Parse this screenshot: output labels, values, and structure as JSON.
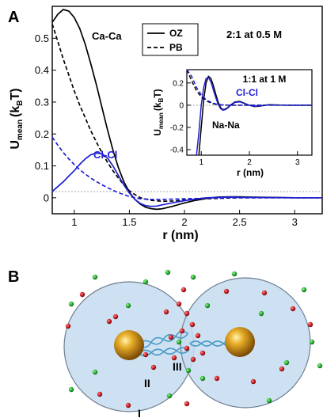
{
  "panel_a": {
    "label": "A",
    "xlabel": "r (nm)",
    "ylabel_main": "U",
    "ylabel_sub": "mean",
    "ylabel_unit": "(k",
    "ylabel_unit_sub": "B",
    "ylabel_unit_end": "T)",
    "condition": "2:1 at 0.5 M",
    "label_caca": "Ca-Ca",
    "label_clcl": "Cl-Cl",
    "legend": [
      {
        "name": "OZ",
        "style": "solid"
      },
      {
        "name": "PB",
        "style": "dashed"
      }
    ]
  },
  "inset": {
    "condition": "1:1 at 1 M",
    "label_clcl": "Cl-Cl",
    "label_nana": "Na-Na",
    "xlabel": "r (nm)",
    "ylabel_main": "U",
    "ylabel_sub": "mean",
    "ylabel_unit": "(k",
    "ylabel_unit_sub": "B",
    "ylabel_unit_end": "T)"
  },
  "panel_b": {
    "label": "B",
    "roman_1": "I",
    "roman_2": "II",
    "roman_3": "III"
  },
  "colors": {
    "black": "#000000",
    "blue": "#1f1fd6",
    "sphere_fill": "#c6dcf0",
    "sphere_stroke": "#6f7f8f",
    "red_ion": "#c0141c",
    "green_ion": "#1faa2e",
    "gold": "#d6961a"
  },
  "chart_data": [
    {
      "type": "line",
      "xlim": [
        0.8,
        3.25
      ],
      "ylim": [
        -0.05,
        0.6
      ],
      "x_ticks": [
        "1",
        "1.5",
        "2",
        "2.5",
        "3"
      ],
      "y_ticks": [
        "0",
        "0.1",
        "0.2",
        "0.3",
        "0.4",
        "0.5"
      ],
      "series": [
        {
          "name": "Ca-Ca OZ",
          "color": "black",
          "style": "solid",
          "points": [
            [
              0.8,
              0.55
            ],
            [
              0.85,
              0.575
            ],
            [
              0.9,
              0.59
            ],
            [
              0.95,
              0.585
            ],
            [
              1.0,
              0.565
            ],
            [
              1.05,
              0.53
            ],
            [
              1.1,
              0.48
            ],
            [
              1.15,
              0.42
            ],
            [
              1.2,
              0.355
            ],
            [
              1.25,
              0.285
            ],
            [
              1.3,
              0.215
            ],
            [
              1.35,
              0.15
            ],
            [
              1.4,
              0.095
            ],
            [
              1.45,
              0.05
            ],
            [
              1.5,
              0.018
            ],
            [
              1.55,
              -0.005
            ],
            [
              1.6,
              -0.02
            ],
            [
              1.65,
              -0.03
            ],
            [
              1.7,
              -0.034
            ],
            [
              1.75,
              -0.036
            ],
            [
              1.8,
              -0.034
            ],
            [
              1.9,
              -0.026
            ],
            [
              2.0,
              -0.016
            ],
            [
              2.1,
              -0.008
            ],
            [
              2.2,
              -0.002
            ],
            [
              2.3,
              0.002
            ],
            [
              2.4,
              0.003
            ],
            [
              2.5,
              0.003
            ],
            [
              2.6,
              0.002
            ],
            [
              2.8,
              0.001
            ],
            [
              3.0,
              0.0
            ],
            [
              3.25,
              0.0
            ]
          ]
        },
        {
          "name": "Ca-Ca PB",
          "color": "black",
          "style": "dashed",
          "points": [
            [
              0.8,
              0.545
            ],
            [
              0.85,
              0.49
            ],
            [
              0.9,
              0.435
            ],
            [
              0.95,
              0.385
            ],
            [
              1.0,
              0.335
            ],
            [
              1.05,
              0.29
            ],
            [
              1.1,
              0.25
            ],
            [
              1.15,
              0.21
            ],
            [
              1.2,
              0.175
            ],
            [
              1.25,
              0.142
            ],
            [
              1.3,
              0.112
            ],
            [
              1.35,
              0.085
            ],
            [
              1.4,
              0.062
            ],
            [
              1.45,
              0.04
            ],
            [
              1.5,
              0.022
            ],
            [
              1.55,
              0.01
            ],
            [
              1.6,
              0.0
            ],
            [
              1.7,
              -0.008
            ],
            [
              1.8,
              -0.011
            ],
            [
              1.9,
              -0.01
            ],
            [
              2.0,
              -0.007
            ],
            [
              2.2,
              -0.003
            ],
            [
              2.5,
              0.0
            ],
            [
              3.0,
              0.0
            ],
            [
              3.25,
              0.0
            ]
          ]
        },
        {
          "name": "Cl-Cl OZ",
          "color": "blue",
          "style": "solid",
          "points": [
            [
              0.8,
              0.02
            ],
            [
              0.85,
              0.035
            ],
            [
              0.9,
              0.05
            ],
            [
              0.95,
              0.068
            ],
            [
              1.0,
              0.085
            ],
            [
              1.05,
              0.105
            ],
            [
              1.1,
              0.122
            ],
            [
              1.15,
              0.135
            ],
            [
              1.2,
              0.14
            ],
            [
              1.25,
              0.138
            ],
            [
              1.3,
              0.125
            ],
            [
              1.35,
              0.1
            ],
            [
              1.4,
              0.07
            ],
            [
              1.45,
              0.04
            ],
            [
              1.5,
              0.015
            ],
            [
              1.55,
              -0.005
            ],
            [
              1.6,
              -0.018
            ],
            [
              1.65,
              -0.025
            ],
            [
              1.7,
              -0.027
            ],
            [
              1.75,
              -0.026
            ],
            [
              1.8,
              -0.022
            ],
            [
              1.9,
              -0.015
            ],
            [
              2.0,
              -0.009
            ],
            [
              2.1,
              -0.004
            ],
            [
              2.2,
              0.0
            ],
            [
              2.4,
              0.002
            ],
            [
              2.6,
              0.001
            ],
            [
              3.0,
              0.0
            ],
            [
              3.25,
              0.0
            ]
          ]
        },
        {
          "name": "Cl-Cl PB",
          "color": "blue",
          "style": "dashed",
          "points": [
            [
              0.8,
              0.19
            ],
            [
              0.85,
              0.165
            ],
            [
              0.9,
              0.142
            ],
            [
              0.95,
              0.122
            ],
            [
              1.0,
              0.104
            ],
            [
              1.05,
              0.088
            ],
            [
              1.1,
              0.074
            ],
            [
              1.15,
              0.062
            ],
            [
              1.2,
              0.051
            ],
            [
              1.25,
              0.041
            ],
            [
              1.3,
              0.032
            ],
            [
              1.35,
              0.024
            ],
            [
              1.4,
              0.016
            ],
            [
              1.45,
              0.01
            ],
            [
              1.5,
              0.004
            ],
            [
              1.55,
              0.0
            ],
            [
              1.6,
              -0.003
            ],
            [
              1.7,
              -0.005
            ],
            [
              1.8,
              -0.005
            ],
            [
              1.9,
              -0.004
            ],
            [
              2.0,
              -0.003
            ],
            [
              2.3,
              -0.001
            ],
            [
              2.6,
              0.0
            ],
            [
              3.25,
              0.0
            ]
          ]
        }
      ]
    },
    {
      "type": "line",
      "xlim": [
        0.7,
        3.3
      ],
      "ylim": [
        -0.45,
        0.32
      ],
      "x_ticks": [
        "1",
        "2",
        "3"
      ],
      "y_ticks": [
        "-0.4",
        "-0.2",
        "0",
        "0.2"
      ],
      "series": [
        {
          "name": "Na-Na OZ",
          "color": "black",
          "style": "solid",
          "points": [
            [
              0.95,
              -0.45
            ],
            [
              1.0,
              -0.2
            ],
            [
              1.05,
              0.05
            ],
            [
              1.1,
              0.2
            ],
            [
              1.15,
              0.26
            ],
            [
              1.2,
              0.24
            ],
            [
              1.25,
              0.18
            ],
            [
              1.3,
              0.1
            ],
            [
              1.35,
              0.03
            ],
            [
              1.4,
              -0.02
            ],
            [
              1.45,
              -0.04
            ],
            [
              1.5,
              -0.035
            ],
            [
              1.55,
              -0.02
            ],
            [
              1.6,
              0.0
            ],
            [
              1.7,
              0.03
            ],
            [
              1.8,
              0.035
            ],
            [
              1.9,
              0.018
            ],
            [
              2.0,
              0.0
            ],
            [
              2.1,
              -0.012
            ],
            [
              2.2,
              -0.01
            ],
            [
              2.3,
              -0.002
            ],
            [
              2.4,
              0.004
            ],
            [
              2.6,
              0.002
            ],
            [
              2.8,
              0.0
            ],
            [
              3.3,
              0.0
            ]
          ]
        },
        {
          "name": "Cl-Cl OZ",
          "color": "blue",
          "style": "solid",
          "points": [
            [
              0.9,
              -0.45
            ],
            [
              0.95,
              -0.25
            ],
            [
              1.0,
              0.0
            ],
            [
              1.05,
              0.16
            ],
            [
              1.1,
              0.24
            ],
            [
              1.15,
              0.25
            ],
            [
              1.2,
              0.21
            ],
            [
              1.25,
              0.14
            ],
            [
              1.3,
              0.07
            ],
            [
              1.35,
              0.01
            ],
            [
              1.4,
              -0.03
            ],
            [
              1.45,
              -0.045
            ],
            [
              1.5,
              -0.04
            ],
            [
              1.55,
              -0.025
            ],
            [
              1.6,
              -0.005
            ],
            [
              1.7,
              0.025
            ],
            [
              1.8,
              0.03
            ],
            [
              1.9,
              0.015
            ],
            [
              2.0,
              0.0
            ],
            [
              2.1,
              -0.01
            ],
            [
              2.2,
              -0.008
            ],
            [
              2.3,
              -0.001
            ],
            [
              2.4,
              0.003
            ],
            [
              2.6,
              0.001
            ],
            [
              3.3,
              0.0
            ]
          ]
        },
        {
          "name": "Na-Na PB",
          "color": "black",
          "style": "dashed",
          "points": [
            [
              0.7,
              0.35
            ],
            [
              0.8,
              0.22
            ],
            [
              0.9,
              0.13
            ],
            [
              1.0,
              0.075
            ],
            [
              1.1,
              0.04
            ],
            [
              1.2,
              0.02
            ],
            [
              1.3,
              0.008
            ],
            [
              1.4,
              0.002
            ],
            [
              1.6,
              0.0
            ],
            [
              3.3,
              0.0
            ]
          ]
        },
        {
          "name": "Cl-Cl PB",
          "color": "blue",
          "style": "dashed",
          "points": [
            [
              0.7,
              0.4
            ],
            [
              0.8,
              0.26
            ],
            [
              0.9,
              0.16
            ],
            [
              1.0,
              0.095
            ],
            [
              1.1,
              0.05
            ],
            [
              1.2,
              0.026
            ],
            [
              1.3,
              0.012
            ],
            [
              1.4,
              0.004
            ],
            [
              1.6,
              0.0
            ],
            [
              3.3,
              0.0
            ]
          ]
        }
      ]
    }
  ]
}
